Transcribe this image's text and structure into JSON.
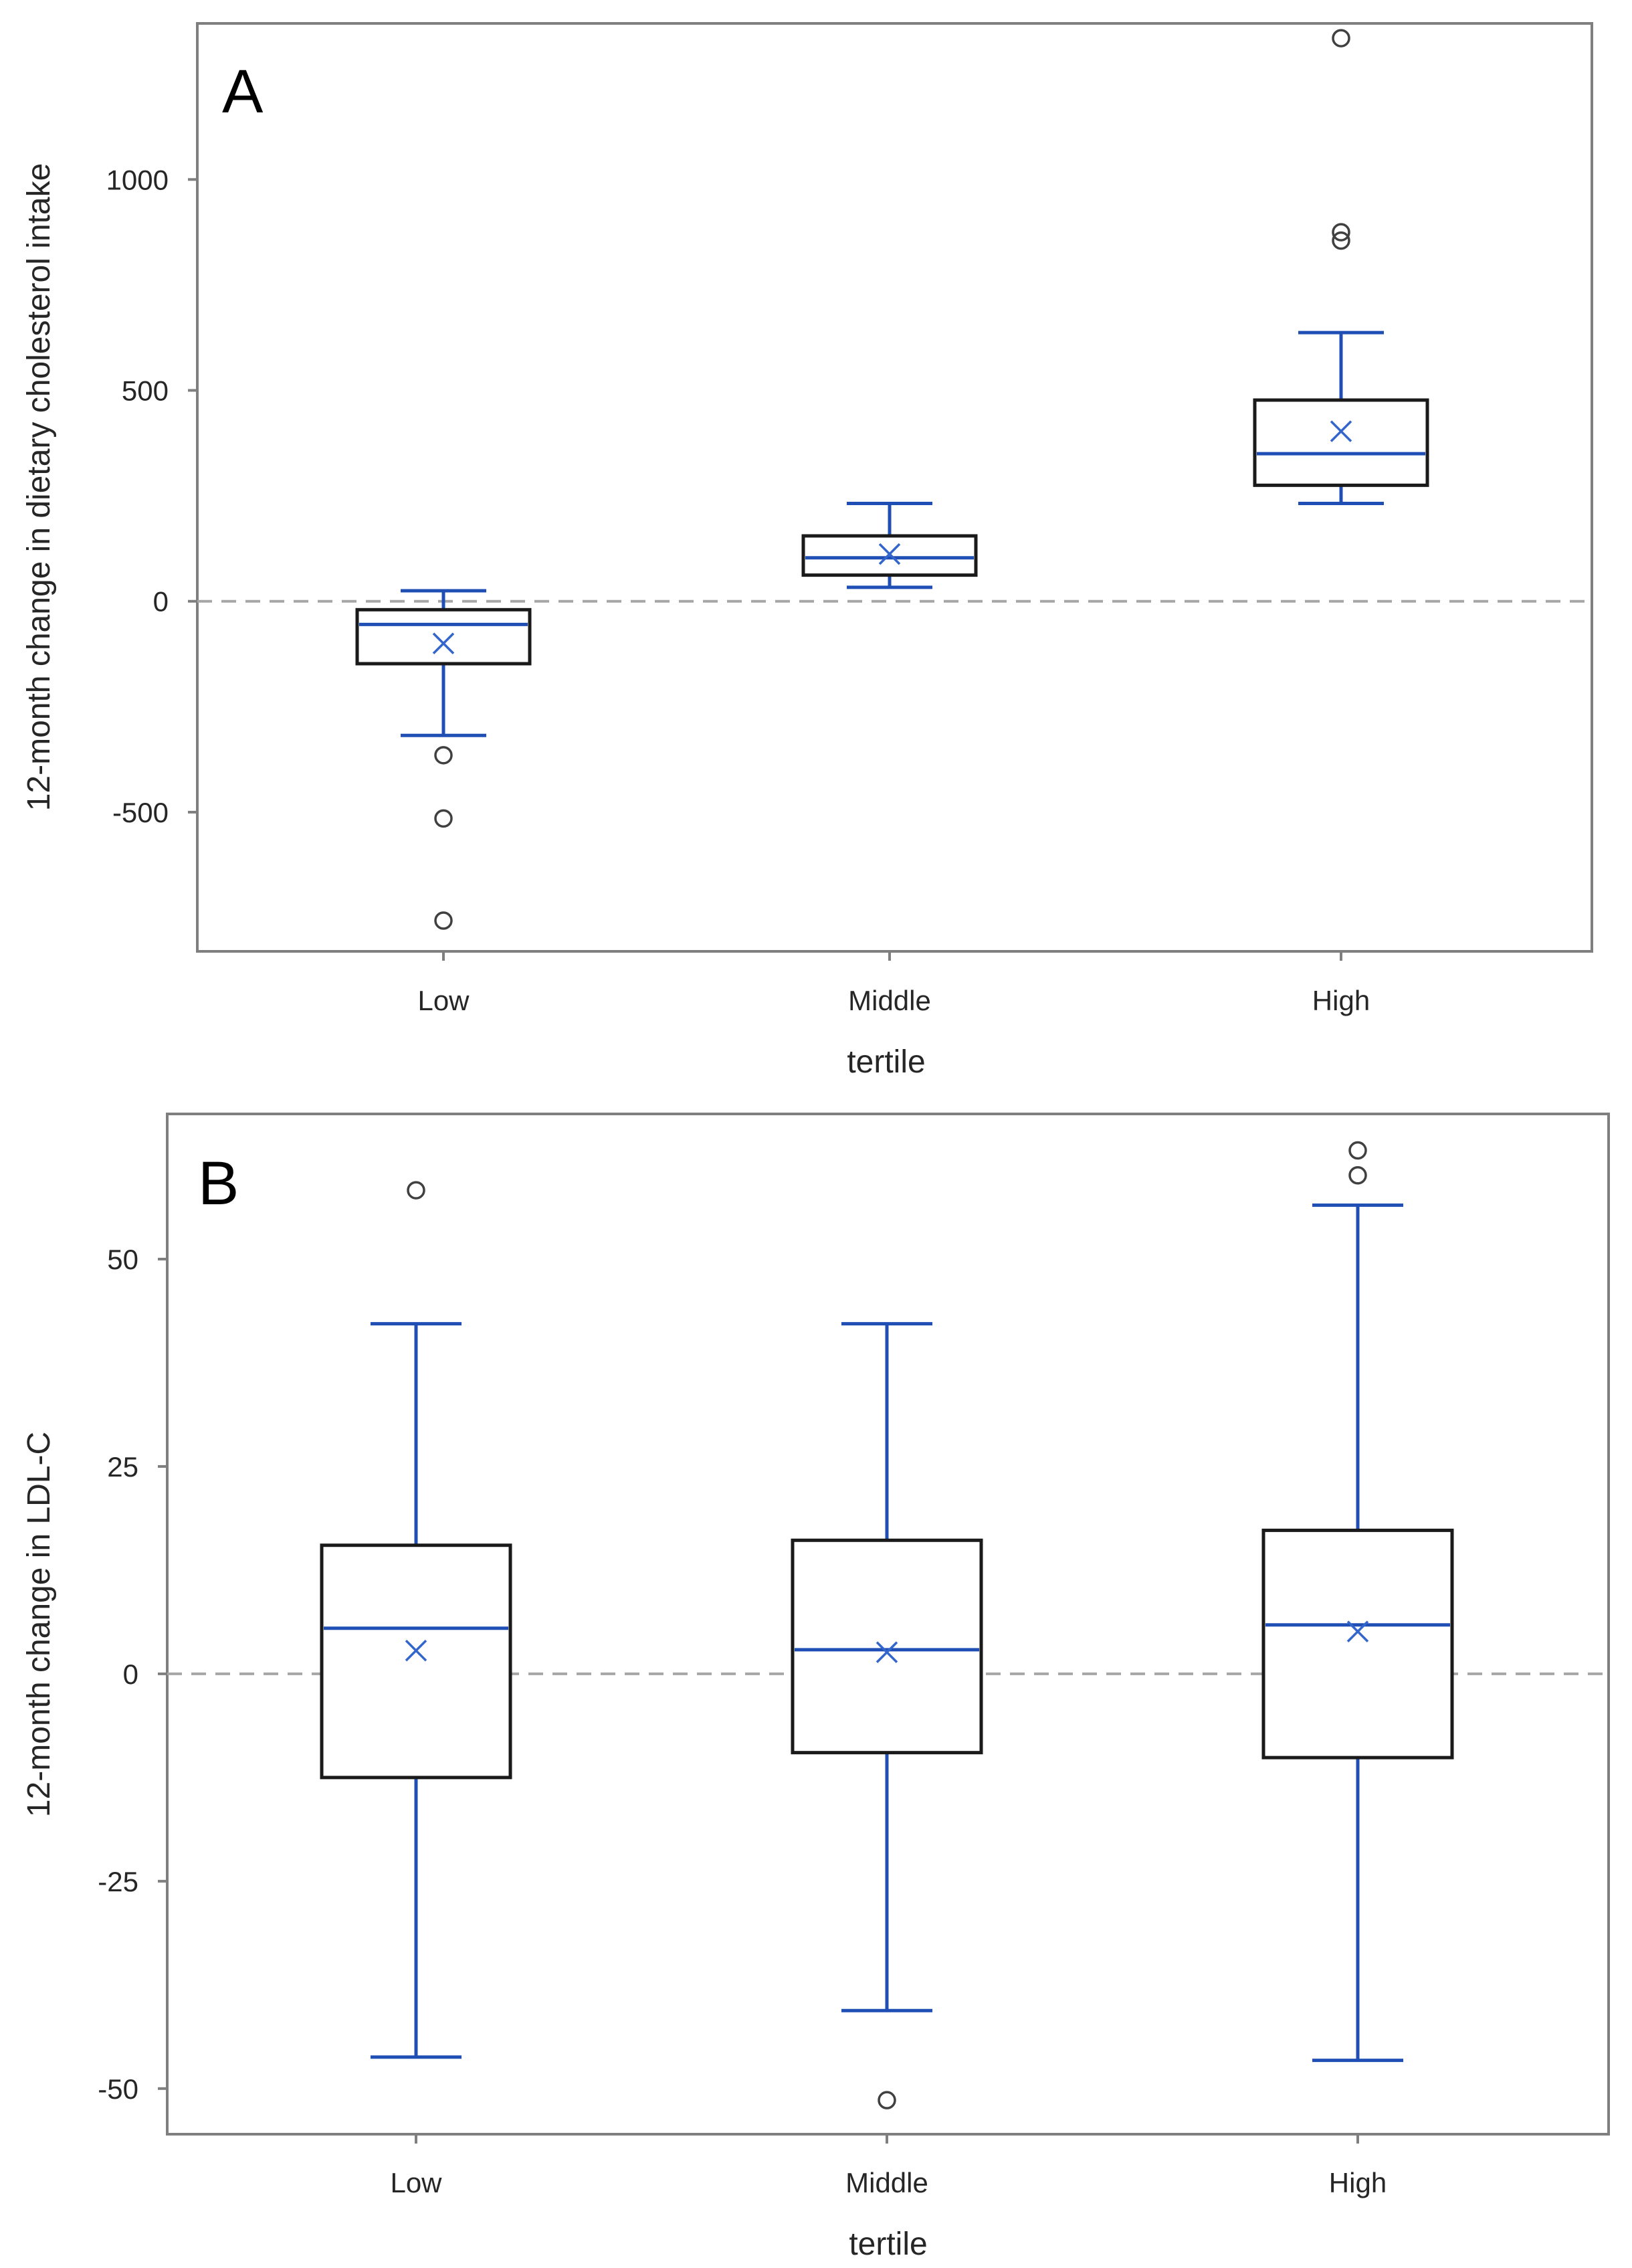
{
  "chart_data": [
    {
      "panel": "A",
      "type": "box",
      "xlabel": "tertile",
      "ylabel": "12-month change in dietary  cholesterol intake",
      "ylim": [
        -830,
        1370
      ],
      "yticks": [
        -500,
        0,
        500,
        1000
      ],
      "reference_line": 0,
      "categories": [
        "Low",
        "Middle",
        "High"
      ],
      "boxes": [
        {
          "q1": -148,
          "median": -55,
          "q3": -20,
          "whisker_low": -318,
          "whisker_high": 25,
          "mean": -100,
          "outliers": [
            -365,
            -515,
            -757
          ]
        },
        {
          "q1": 62,
          "median": 103,
          "q3": 155,
          "whisker_low": 33,
          "whisker_high": 232,
          "mean": 112,
          "outliers": []
        },
        {
          "q1": 275,
          "median": 350,
          "q3": 477,
          "whisker_low": 232,
          "whisker_high": 637,
          "mean": 403,
          "outliers": [
            855,
            875,
            1335
          ]
        }
      ]
    },
    {
      "panel": "B",
      "type": "box",
      "xlabel": "tertile",
      "ylabel": "12-month change in LDL-C",
      "ylim": [
        -55.5,
        67.5
      ],
      "yticks": [
        -50,
        -25,
        0,
        25,
        50
      ],
      "reference_line": 0,
      "categories": [
        "Low",
        "Middle",
        "High"
      ],
      "boxes": [
        {
          "q1": -12.5,
          "median": 5.5,
          "q3": 15.5,
          "whisker_low": -46.2,
          "whisker_high": 42.2,
          "mean": 2.8,
          "outliers": [
            58.3
          ]
        },
        {
          "q1": -9.5,
          "median": 2.9,
          "q3": 16.1,
          "whisker_low": -40.6,
          "whisker_high": 42.2,
          "mean": 2.6,
          "outliers": [
            -51.4
          ]
        },
        {
          "q1": -10.1,
          "median": 5.9,
          "q3": 17.3,
          "whisker_low": -46.6,
          "whisker_high": 56.5,
          "mean": 5.1,
          "outliers": [
            60.1,
            63.1
          ]
        }
      ]
    }
  ]
}
